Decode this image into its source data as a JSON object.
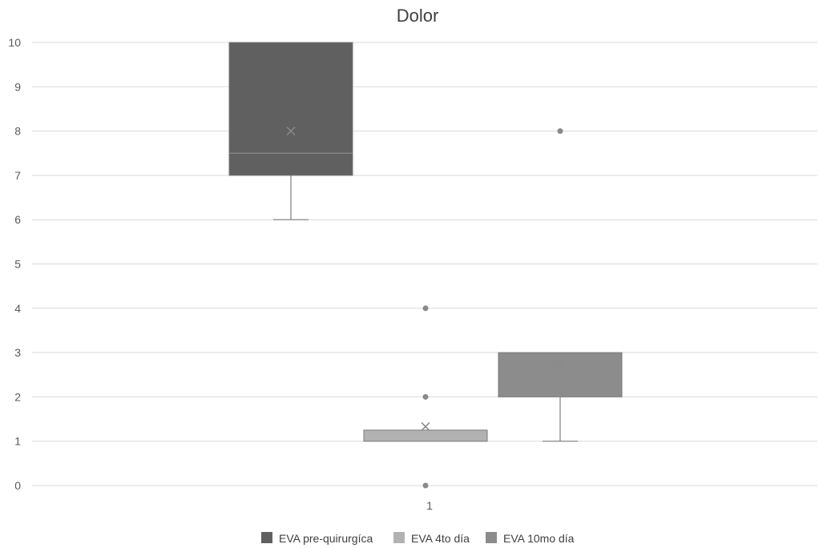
{
  "chart_data": {
    "type": "box",
    "title": "Dolor",
    "categories": [
      "1"
    ],
    "y_ticks": [
      "0",
      "1",
      "2",
      "3",
      "4",
      "5",
      "6",
      "7",
      "8",
      "9",
      "10"
    ],
    "ylim": [
      0,
      10
    ],
    "grid": true,
    "legend_position": "bottom",
    "series": [
      {
        "name": "EVA pre-quirurgíca",
        "color": "#606060",
        "whisker_low": 6,
        "q1": 7,
        "median": 7.5,
        "q3": 10,
        "whisker_high": 10,
        "mean": 8,
        "outliers": []
      },
      {
        "name": "EVA 4to día",
        "color": "#b2b2b2",
        "whisker_low": 1,
        "q1": 1,
        "median": 1,
        "q3": 1.25,
        "whisker_high": 1.25,
        "mean": 1.33,
        "outliers": [
          4,
          2,
          0
        ]
      },
      {
        "name": "EVA 10mo día",
        "color": "#8c8c8c",
        "whisker_low": 1,
        "q1": 2,
        "median": 2,
        "q3": 3,
        "whisker_high": 3,
        "mean": 2.7,
        "outliers": [
          8
        ]
      }
    ]
  }
}
